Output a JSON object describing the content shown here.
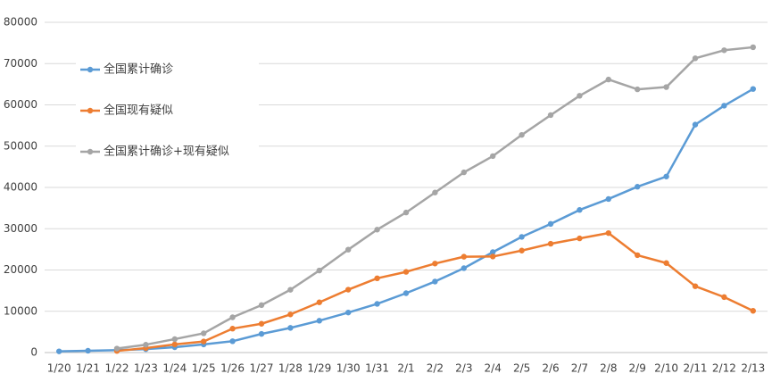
{
  "chart_data": {
    "type": "line",
    "categories": [
      "1/20",
      "1/21",
      "1/22",
      "1/23",
      "1/24",
      "1/25",
      "1/26",
      "1/27",
      "1/28",
      "1/29",
      "1/30",
      "1/31",
      "2/1",
      "2/2",
      "2/3",
      "2/4",
      "2/5",
      "2/6",
      "2/7",
      "2/8",
      "2/9",
      "2/10",
      "2/11",
      "2/12",
      "2/13"
    ],
    "series": [
      {
        "name": "全国累计确诊",
        "color": "#5b9bd5",
        "values": [
          291,
          440,
          571,
          830,
          1287,
          1975,
          2744,
          4515,
          5974,
          7711,
          9692,
          11791,
          14380,
          17205,
          20438,
          24324,
          28018,
          31161,
          34546,
          37198,
          40171,
          42638,
          55218,
          59804,
          63851
        ]
      },
      {
        "name": "全国现有疑似",
        "color": "#ed7d31",
        "values": [
          null,
          null,
          393,
          1072,
          1965,
          2684,
          5794,
          6973,
          9239,
          12167,
          15238,
          17988,
          19544,
          21558,
          23214,
          23260,
          24702,
          26359,
          27657,
          28942,
          23589,
          21675,
          16067,
          13435,
          10109
        ]
      },
      {
        "name": "全国累计确诊+现有疑似",
        "color": "#a5a5a5",
        "values": [
          null,
          null,
          964,
          1902,
          3252,
          4659,
          8538,
          11488,
          15213,
          19878,
          24930,
          29779,
          33924,
          38763,
          43652,
          47584,
          52720,
          57520,
          62203,
          66140,
          63760,
          64313,
          71285,
          73239,
          73960
        ]
      }
    ],
    "ylim": [
      0,
      80000
    ],
    "yticks": [
      0,
      10000,
      20000,
      30000,
      40000,
      50000,
      60000,
      70000,
      80000
    ],
    "grid": true
  }
}
